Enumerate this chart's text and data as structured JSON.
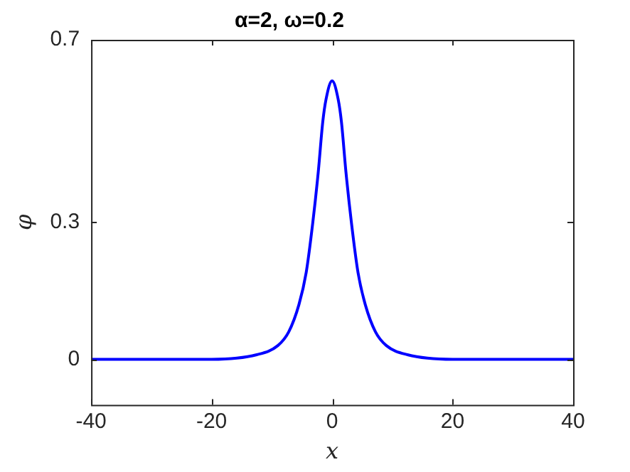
{
  "chart_data": {
    "type": "line",
    "title": "α=2, ω=0.2",
    "xlabel": "x",
    "ylabel": "φ",
    "x": [
      -40,
      -20,
      -12.5,
      -9,
      -7.2,
      -5.5,
      -4.3,
      -3.2,
      -2.3,
      -1.55,
      -1,
      0,
      1,
      1.55,
      2.3,
      3.2,
      4.3,
      5.5,
      7.2,
      9,
      12.5,
      20,
      40
    ],
    "series": [
      {
        "color": "#0000ff",
        "values": [
          0,
          0,
          0.01,
          0.03,
          0.06,
          0.12,
          0.19,
          0.3,
          0.41,
          0.52,
          0.57,
          0.61,
          0.57,
          0.52,
          0.41,
          0.3,
          0.19,
          0.12,
          0.06,
          0.03,
          0.01,
          0,
          0
        ]
      }
    ],
    "xlim": [
      -40,
      40
    ],
    "xticks": [
      -40,
      -20,
      0,
      20,
      40
    ],
    "ylim": [
      -0.1,
      0.7
    ],
    "yticks": [
      0,
      0.3,
      0.7
    ],
    "grid": false,
    "legend": false,
    "marker": "none",
    "line_style": "solid"
  }
}
